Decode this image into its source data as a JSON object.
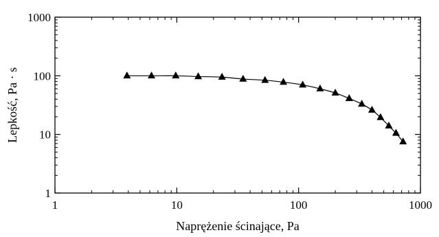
{
  "chart_data": {
    "type": "scatter",
    "xlabel": "Naprężenie ścinające, Pa",
    "ylabel": "Lepkość, Pa · s",
    "xscale": "log",
    "yscale": "log",
    "xlim": [
      1,
      1000
    ],
    "ylim": [
      1,
      1000
    ],
    "xticks": [
      "1",
      "10",
      "100",
      "1000"
    ],
    "yticks": [
      "1",
      "10",
      "100",
      "1000"
    ],
    "grid": false,
    "series": [
      {
        "marker": "triangle",
        "line": "smooth",
        "color": "#000000",
        "x": [
          3.9,
          6.2,
          9.8,
          15,
          23.5,
          35,
          53,
          75,
          108,
          150,
          200,
          260,
          330,
          400,
          470,
          550,
          630,
          720
        ],
        "y": [
          100,
          100,
          100,
          97,
          95,
          88,
          84,
          78,
          70,
          60,
          51,
          41,
          33,
          26,
          19.5,
          14,
          10.5,
          7.5
        ]
      }
    ]
  }
}
